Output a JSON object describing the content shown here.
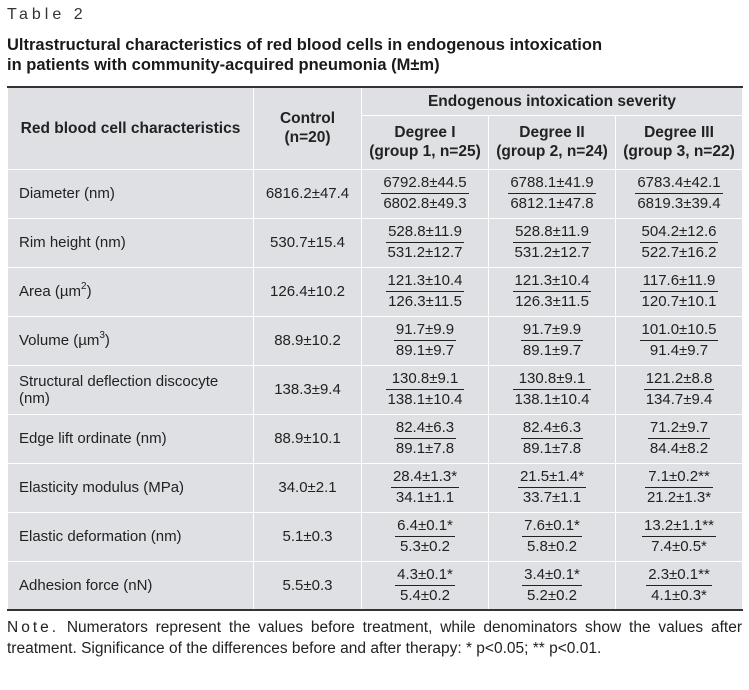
{
  "header": {
    "table_label": "Table 2",
    "caption_line1": "Ultrastructural characteristics of red blood cells in endogenous intoxication",
    "caption_line2": "in patients with community-acquired pneumonia (M±m)"
  },
  "columns": {
    "characteristic": "Red blood cell characteristics",
    "control_line1": "Control",
    "control_line2": "(n=20)",
    "severity_group": "Endogenous intoxication severity",
    "degrees": [
      {
        "title": "Degree I",
        "subtitle": "(group 1, n=25)"
      },
      {
        "title": "Degree II",
        "subtitle": "(group 2, n=24)"
      },
      {
        "title": "Degree III",
        "subtitle": "(group 3, n=22)"
      }
    ]
  },
  "rows": [
    {
      "label": "Diameter (nm)",
      "unit_sup": "",
      "label_suffix": "",
      "control": "6816.2±47.4",
      "d1": {
        "before": "6792.8±44.5",
        "after": "6802.8±49.3"
      },
      "d2": {
        "before": "6788.1±41.9",
        "after": "6812.1±47.8"
      },
      "d3": {
        "before": "6783.4±42.1",
        "after": "6819.3±39.4"
      }
    },
    {
      "label": "Rim height (nm)",
      "unit_sup": "",
      "label_suffix": "",
      "control": "530.7±15.4",
      "d1": {
        "before": "528.8±11.9",
        "after": "531.2±12.7"
      },
      "d2": {
        "before": "528.8±11.9",
        "after": "531.2±12.7"
      },
      "d3": {
        "before": "504.2±12.6",
        "after": "522.7±16.2"
      }
    },
    {
      "label": "Area (µm",
      "unit_sup": "2",
      "label_suffix": ")",
      "control": "126.4±10.2",
      "d1": {
        "before": "121.3±10.4",
        "after": "126.3±11.5"
      },
      "d2": {
        "before": "121.3±10.4",
        "after": "126.3±11.5"
      },
      "d3": {
        "before": "117.6±11.9",
        "after": "120.7±10.1"
      }
    },
    {
      "label": "Volume (µm",
      "unit_sup": "3",
      "label_suffix": ")",
      "control": "88.9±10.2",
      "d1": {
        "before": "91.7±9.9",
        "after": "89.1±9.7"
      },
      "d2": {
        "before": "91.7±9.9",
        "after": "89.1±9.7"
      },
      "d3": {
        "before": "101.0±10.5",
        "after": "91.4±9.7"
      }
    },
    {
      "label": "Structural deflection discocyte (nm)",
      "unit_sup": "",
      "label_suffix": "",
      "control": "138.3±9.4",
      "d1": {
        "before": "130.8±9.1",
        "after": "138.1±10.4"
      },
      "d2": {
        "before": "130.8±9.1",
        "after": "138.1±10.4"
      },
      "d3": {
        "before": "121.2±8.8",
        "after": "134.7±9.4"
      }
    },
    {
      "label": "Edge lift ordinate (nm)",
      "unit_sup": "",
      "label_suffix": "",
      "control": "88.9±10.1",
      "d1": {
        "before": "82.4±6.3",
        "after": "89.1±7.8"
      },
      "d2": {
        "before": "82.4±6.3",
        "after": "89.1±7.8"
      },
      "d3": {
        "before": "71.2±9.7",
        "after": "84.4±8.2"
      }
    },
    {
      "label": "Elasticity modulus (MPa)",
      "unit_sup": "",
      "label_suffix": "",
      "control": "34.0±2.1",
      "d1": {
        "before": "28.4±1.3*",
        "after": "34.1±1.1"
      },
      "d2": {
        "before": "21.5±1.4*",
        "after": "33.7±1.1"
      },
      "d3": {
        "before": "7.1±0.2**",
        "after": "21.2±1.3*"
      }
    },
    {
      "label": "Elastic deformation (nm)",
      "unit_sup": "",
      "label_suffix": "",
      "control": "5.1±0.3",
      "d1": {
        "before": "6.4±0.1*",
        "after": "5.3±0.2"
      },
      "d2": {
        "before": "7.6±0.1*",
        "after": "5.8±0.2"
      },
      "d3": {
        "before": "13.2±1.1**",
        "after": "7.4±0.5*"
      }
    },
    {
      "label": "Adhesion force (nN)",
      "unit_sup": "",
      "label_suffix": "",
      "control": "5.5±0.3",
      "d1": {
        "before": "4.3±0.1*",
        "after": "5.4±0.2"
      },
      "d2": {
        "before": "3.4±0.1*",
        "after": "5.2±0.2"
      },
      "d3": {
        "before": "2.3±0.1**",
        "after": "4.1±0.3*"
      }
    }
  ],
  "note": {
    "label": "Note.",
    "text": " Numerators represent the values before treatment, while denominators show the values after treatment. Significance of the differences before and after therapy: * p<0.05; ** p<0.01."
  }
}
